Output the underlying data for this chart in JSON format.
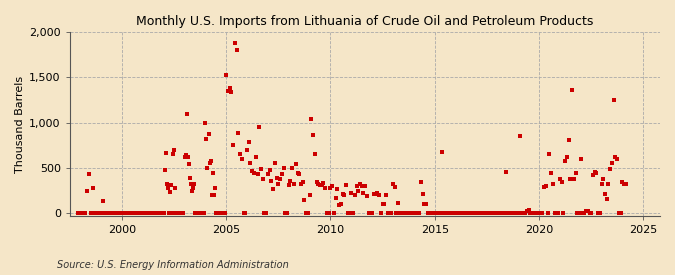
{
  "title": "Monthly U.S. Imports from Lithuania of Crude Oil and Petroleum Products",
  "ylabel": "Thousand Barrels",
  "source": "Source: U.S. Energy Information Administration",
  "background_color": "#f5e6c8",
  "plot_bg_color": "#f5e6c8",
  "marker_color": "#cc0000",
  "marker_size": 12,
  "xlim": [
    1997.5,
    2025.8
  ],
  "ylim": [
    -30,
    2000
  ],
  "yticks": [
    0,
    500,
    1000,
    1500,
    2000
  ],
  "xticks": [
    2000,
    2005,
    2010,
    2015,
    2020,
    2025
  ],
  "data": [
    [
      1997.9,
      0
    ],
    [
      1998.0,
      0
    ],
    [
      1998.1,
      0
    ],
    [
      1998.2,
      0
    ],
    [
      1998.25,
      0
    ],
    [
      1998.3,
      250
    ],
    [
      1998.4,
      430
    ],
    [
      1998.5,
      0
    ],
    [
      1998.6,
      280
    ],
    [
      1998.7,
      0
    ],
    [
      1998.8,
      0
    ],
    [
      1998.9,
      0
    ],
    [
      1999.0,
      0
    ],
    [
      1999.1,
      140
    ],
    [
      1999.2,
      0
    ],
    [
      1999.3,
      0
    ],
    [
      1999.4,
      0
    ],
    [
      1999.5,
      0
    ],
    [
      1999.6,
      0
    ],
    [
      1999.7,
      0
    ],
    [
      1999.8,
      0
    ],
    [
      1999.9,
      0
    ],
    [
      1999.95,
      0
    ],
    [
      2000.0,
      0
    ],
    [
      2000.05,
      0
    ],
    [
      2000.1,
      0
    ],
    [
      2000.15,
      0
    ],
    [
      2000.2,
      0
    ],
    [
      2000.25,
      0
    ],
    [
      2000.3,
      0
    ],
    [
      2000.35,
      0
    ],
    [
      2000.4,
      0
    ],
    [
      2000.45,
      0
    ],
    [
      2000.5,
      0
    ],
    [
      2000.55,
      0
    ],
    [
      2000.6,
      0
    ],
    [
      2000.65,
      0
    ],
    [
      2000.7,
      0
    ],
    [
      2000.75,
      0
    ],
    [
      2000.8,
      0
    ],
    [
      2000.85,
      0
    ],
    [
      2000.9,
      0
    ],
    [
      2000.95,
      0
    ],
    [
      2001.0,
      0
    ],
    [
      2001.05,
      0
    ],
    [
      2001.1,
      0
    ],
    [
      2001.15,
      0
    ],
    [
      2001.2,
      0
    ],
    [
      2001.25,
      0
    ],
    [
      2001.3,
      0
    ],
    [
      2001.35,
      0
    ],
    [
      2001.4,
      0
    ],
    [
      2001.45,
      0
    ],
    [
      2001.5,
      0
    ],
    [
      2001.55,
      0
    ],
    [
      2001.6,
      0
    ],
    [
      2001.65,
      0
    ],
    [
      2001.7,
      0
    ],
    [
      2001.75,
      0
    ],
    [
      2001.8,
      0
    ],
    [
      2001.85,
      0
    ],
    [
      2001.9,
      0
    ],
    [
      2001.95,
      0
    ],
    [
      2002.0,
      0
    ],
    [
      2002.05,
      480
    ],
    [
      2002.1,
      670
    ],
    [
      2002.15,
      320
    ],
    [
      2002.2,
      280
    ],
    [
      2002.25,
      0
    ],
    [
      2002.3,
      240
    ],
    [
      2002.35,
      310
    ],
    [
      2002.4,
      0
    ],
    [
      2002.45,
      650
    ],
    [
      2002.5,
      700
    ],
    [
      2002.55,
      280
    ],
    [
      2002.6,
      0
    ],
    [
      2002.65,
      0
    ],
    [
      2002.7,
      0
    ],
    [
      2002.75,
      0
    ],
    [
      2002.8,
      0
    ],
    [
      2002.85,
      0
    ],
    [
      2002.9,
      0
    ],
    [
      2002.95,
      0
    ],
    [
      2003.0,
      620
    ],
    [
      2003.05,
      640
    ],
    [
      2003.1,
      1100
    ],
    [
      2003.15,
      620
    ],
    [
      2003.2,
      550
    ],
    [
      2003.25,
      390
    ],
    [
      2003.3,
      320
    ],
    [
      2003.35,
      250
    ],
    [
      2003.4,
      280
    ],
    [
      2003.45,
      330
    ],
    [
      2003.5,
      0
    ],
    [
      2003.55,
      0
    ],
    [
      2003.6,
      0
    ],
    [
      2003.65,
      0
    ],
    [
      2003.7,
      0
    ],
    [
      2003.75,
      0
    ],
    [
      2003.8,
      0
    ],
    [
      2003.85,
      0
    ],
    [
      2003.9,
      0
    ],
    [
      2003.95,
      0
    ],
    [
      2004.0,
      1000
    ],
    [
      2004.05,
      820
    ],
    [
      2004.1,
      500
    ],
    [
      2004.15,
      880
    ],
    [
      2004.2,
      560
    ],
    [
      2004.25,
      580
    ],
    [
      2004.3,
      200
    ],
    [
      2004.35,
      450
    ],
    [
      2004.4,
      200
    ],
    [
      2004.45,
      280
    ],
    [
      2004.5,
      0
    ],
    [
      2004.55,
      0
    ],
    [
      2004.6,
      0
    ],
    [
      2004.65,
      0
    ],
    [
      2004.7,
      0
    ],
    [
      2004.75,
      0
    ],
    [
      2004.8,
      0
    ],
    [
      2004.85,
      0
    ],
    [
      2004.9,
      0
    ],
    [
      2004.95,
      0
    ],
    [
      2005.0,
      1530
    ],
    [
      2005.08,
      1350
    ],
    [
      2005.16,
      1380
    ],
    [
      2005.25,
      1340
    ],
    [
      2005.33,
      750
    ],
    [
      2005.42,
      1880
    ],
    [
      2005.5,
      1800
    ],
    [
      2005.58,
      890
    ],
    [
      2005.66,
      650
    ],
    [
      2005.75,
      600
    ],
    [
      2005.83,
      0
    ],
    [
      2005.91,
      0
    ],
    [
      2006.0,
      700
    ],
    [
      2006.08,
      790
    ],
    [
      2006.16,
      560
    ],
    [
      2006.25,
      470
    ],
    [
      2006.33,
      450
    ],
    [
      2006.42,
      620
    ],
    [
      2006.5,
      430
    ],
    [
      2006.58,
      950
    ],
    [
      2006.66,
      490
    ],
    [
      2006.75,
      380
    ],
    [
      2006.83,
      0
    ],
    [
      2006.91,
      0
    ],
    [
      2007.0,
      440
    ],
    [
      2007.08,
      480
    ],
    [
      2007.16,
      360
    ],
    [
      2007.25,
      270
    ],
    [
      2007.33,
      560
    ],
    [
      2007.42,
      390
    ],
    [
      2007.5,
      320
    ],
    [
      2007.58,
      380
    ],
    [
      2007.66,
      440
    ],
    [
      2007.75,
      500
    ],
    [
      2007.83,
      0
    ],
    [
      2007.91,
      0
    ],
    [
      2008.0,
      310
    ],
    [
      2008.08,
      360
    ],
    [
      2008.16,
      500
    ],
    [
      2008.25,
      330
    ],
    [
      2008.33,
      540
    ],
    [
      2008.42,
      450
    ],
    [
      2008.5,
      440
    ],
    [
      2008.58,
      320
    ],
    [
      2008.66,
      350
    ],
    [
      2008.75,
      150
    ],
    [
      2008.83,
      0
    ],
    [
      2008.91,
      0
    ],
    [
      2009.0,
      200
    ],
    [
      2009.08,
      1040
    ],
    [
      2009.16,
      870
    ],
    [
      2009.25,
      650
    ],
    [
      2009.33,
      350
    ],
    [
      2009.42,
      320
    ],
    [
      2009.5,
      310
    ],
    [
      2009.58,
      310
    ],
    [
      2009.66,
      340
    ],
    [
      2009.75,
      280
    ],
    [
      2009.83,
      0
    ],
    [
      2009.91,
      0
    ],
    [
      2010.0,
      280
    ],
    [
      2010.08,
      300
    ],
    [
      2010.16,
      0
    ],
    [
      2010.25,
      170
    ],
    [
      2010.33,
      270
    ],
    [
      2010.42,
      90
    ],
    [
      2010.5,
      100
    ],
    [
      2010.58,
      220
    ],
    [
      2010.66,
      200
    ],
    [
      2010.75,
      310
    ],
    [
      2010.83,
      0
    ],
    [
      2010.91,
      0
    ],
    [
      2011.0,
      230
    ],
    [
      2011.08,
      0
    ],
    [
      2011.16,
      200
    ],
    [
      2011.25,
      300
    ],
    [
      2011.33,
      250
    ],
    [
      2011.42,
      320
    ],
    [
      2011.5,
      300
    ],
    [
      2011.58,
      230
    ],
    [
      2011.66,
      300
    ],
    [
      2011.75,
      190
    ],
    [
      2011.83,
      0
    ],
    [
      2011.91,
      0
    ],
    [
      2012.0,
      0
    ],
    [
      2012.08,
      210
    ],
    [
      2012.16,
      220
    ],
    [
      2012.25,
      230
    ],
    [
      2012.33,
      200
    ],
    [
      2012.42,
      0
    ],
    [
      2012.5,
      110
    ],
    [
      2012.58,
      100
    ],
    [
      2012.66,
      200
    ],
    [
      2012.75,
      0
    ],
    [
      2012.83,
      0
    ],
    [
      2012.91,
      0
    ],
    [
      2013.0,
      330
    ],
    [
      2013.08,
      290
    ],
    [
      2013.16,
      0
    ],
    [
      2013.25,
      120
    ],
    [
      2013.33,
      0
    ],
    [
      2013.42,
      0
    ],
    [
      2013.5,
      0
    ],
    [
      2013.58,
      0
    ],
    [
      2013.66,
      0
    ],
    [
      2013.75,
      0
    ],
    [
      2013.83,
      0
    ],
    [
      2013.91,
      0
    ],
    [
      2014.0,
      0
    ],
    [
      2014.08,
      0
    ],
    [
      2014.16,
      0
    ],
    [
      2014.25,
      0
    ],
    [
      2014.33,
      350
    ],
    [
      2014.42,
      220
    ],
    [
      2014.5,
      100
    ],
    [
      2014.58,
      110
    ],
    [
      2014.66,
      0
    ],
    [
      2014.75,
      0
    ],
    [
      2014.83,
      0
    ],
    [
      2014.91,
      0
    ],
    [
      2015.0,
      0
    ],
    [
      2015.08,
      0
    ],
    [
      2015.16,
      0
    ],
    [
      2015.25,
      0
    ],
    [
      2015.33,
      680
    ],
    [
      2015.42,
      0
    ],
    [
      2015.5,
      0
    ],
    [
      2015.58,
      0
    ],
    [
      2015.66,
      0
    ],
    [
      2015.75,
      0
    ],
    [
      2015.83,
      0
    ],
    [
      2015.91,
      0
    ],
    [
      2016.0,
      0
    ],
    [
      2016.08,
      0
    ],
    [
      2016.16,
      0
    ],
    [
      2016.25,
      0
    ],
    [
      2016.33,
      0
    ],
    [
      2016.42,
      0
    ],
    [
      2016.5,
      0
    ],
    [
      2016.58,
      0
    ],
    [
      2016.66,
      0
    ],
    [
      2016.75,
      0
    ],
    [
      2016.83,
      0
    ],
    [
      2016.91,
      0
    ],
    [
      2017.0,
      0
    ],
    [
      2017.08,
      0
    ],
    [
      2017.16,
      0
    ],
    [
      2017.25,
      0
    ],
    [
      2017.33,
      0
    ],
    [
      2017.42,
      0
    ],
    [
      2017.5,
      0
    ],
    [
      2017.58,
      0
    ],
    [
      2017.66,
      0
    ],
    [
      2017.75,
      0
    ],
    [
      2017.83,
      0
    ],
    [
      2017.91,
      0
    ],
    [
      2018.0,
      0
    ],
    [
      2018.08,
      0
    ],
    [
      2018.16,
      0
    ],
    [
      2018.25,
      0
    ],
    [
      2018.33,
      0
    ],
    [
      2018.42,
      460
    ],
    [
      2018.5,
      0
    ],
    [
      2018.58,
      0
    ],
    [
      2018.66,
      0
    ],
    [
      2018.75,
      0
    ],
    [
      2018.83,
      0
    ],
    [
      2018.91,
      0
    ],
    [
      2019.0,
      0
    ],
    [
      2019.08,
      850
    ],
    [
      2019.16,
      0
    ],
    [
      2019.25,
      0
    ],
    [
      2019.33,
      0
    ],
    [
      2019.42,
      30
    ],
    [
      2019.5,
      40
    ],
    [
      2019.58,
      0
    ],
    [
      2019.66,
      0
    ],
    [
      2019.75,
      0
    ],
    [
      2019.83,
      0
    ],
    [
      2019.91,
      0
    ],
    [
      2020.0,
      0
    ],
    [
      2020.08,
      0
    ],
    [
      2020.16,
      0
    ],
    [
      2020.25,
      290
    ],
    [
      2020.33,
      300
    ],
    [
      2020.42,
      0
    ],
    [
      2020.5,
      660
    ],
    [
      2020.58,
      450
    ],
    [
      2020.66,
      320
    ],
    [
      2020.75,
      0
    ],
    [
      2020.83,
      0
    ],
    [
      2020.91,
      0
    ],
    [
      2021.0,
      380
    ],
    [
      2021.08,
      350
    ],
    [
      2021.16,
      0
    ],
    [
      2021.25,
      580
    ],
    [
      2021.33,
      620
    ],
    [
      2021.42,
      810
    ],
    [
      2021.5,
      380
    ],
    [
      2021.58,
      1360
    ],
    [
      2021.66,
      380
    ],
    [
      2021.75,
      450
    ],
    [
      2021.83,
      0
    ],
    [
      2021.91,
      0
    ],
    [
      2022.0,
      600
    ],
    [
      2022.08,
      0
    ],
    [
      2022.16,
      0
    ],
    [
      2022.25,
      30
    ],
    [
      2022.33,
      30
    ],
    [
      2022.42,
      0
    ],
    [
      2022.5,
      0
    ],
    [
      2022.58,
      420
    ],
    [
      2022.66,
      460
    ],
    [
      2022.75,
      450
    ],
    [
      2022.83,
      0
    ],
    [
      2022.91,
      0
    ],
    [
      2023.0,
      320
    ],
    [
      2023.08,
      380
    ],
    [
      2023.16,
      220
    ],
    [
      2023.25,
      160
    ],
    [
      2023.33,
      320
    ],
    [
      2023.42,
      490
    ],
    [
      2023.5,
      560
    ],
    [
      2023.58,
      1250
    ],
    [
      2023.66,
      620
    ],
    [
      2023.75,
      600
    ],
    [
      2023.83,
      0
    ],
    [
      2023.91,
      0
    ],
    [
      2024.0,
      350
    ],
    [
      2024.08,
      320
    ],
    [
      2024.16,
      330
    ]
  ]
}
